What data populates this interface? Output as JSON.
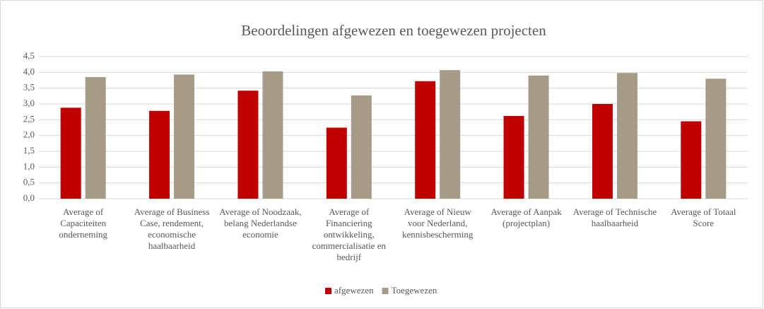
{
  "chart_data": {
    "type": "bar",
    "title": "Beoordelingen afgewezen en toegewezen projecten",
    "categories": [
      "Average of Capaciteiten onderneming",
      "Average of Business Case, rendement, economische haalbaarheid",
      "Average of Noodzaak, belang Nederlandse economie",
      "Average of Financiering ontwikkeling, commercialisatie en bedrijf",
      "Average of Nieuw voor Nederland, kennisbescherming",
      "Average of Aanpak (projectplan)",
      "Average of Technische haalbaarheid",
      "Average of Totaal Score"
    ],
    "series": [
      {
        "name": "afgewezen",
        "color": "#c00000",
        "values": [
          2.88,
          2.78,
          3.42,
          2.25,
          3.72,
          2.62,
          3.0,
          2.45
        ]
      },
      {
        "name": "Toegewezen",
        "color": "#a59b86",
        "values": [
          3.85,
          3.93,
          4.03,
          3.27,
          4.07,
          3.9,
          3.98,
          3.8
        ]
      }
    ],
    "ylim": [
      0,
      4.5
    ],
    "yticks": [
      {
        "value": 0,
        "label": "0,0"
      },
      {
        "value": 0.5,
        "label": "0,5"
      },
      {
        "value": 1,
        "label": "1,0"
      },
      {
        "value": 1.5,
        "label": "1,5"
      },
      {
        "value": 2,
        "label": "2,0"
      },
      {
        "value": 2.5,
        "label": "2,5"
      },
      {
        "value": 3,
        "label": "3,0"
      },
      {
        "value": 3.5,
        "label": "3,5"
      },
      {
        "value": 4,
        "label": "4,0"
      },
      {
        "value": 4.5,
        "label": "4,5"
      }
    ],
    "grid": true,
    "legend": "bottom"
  }
}
